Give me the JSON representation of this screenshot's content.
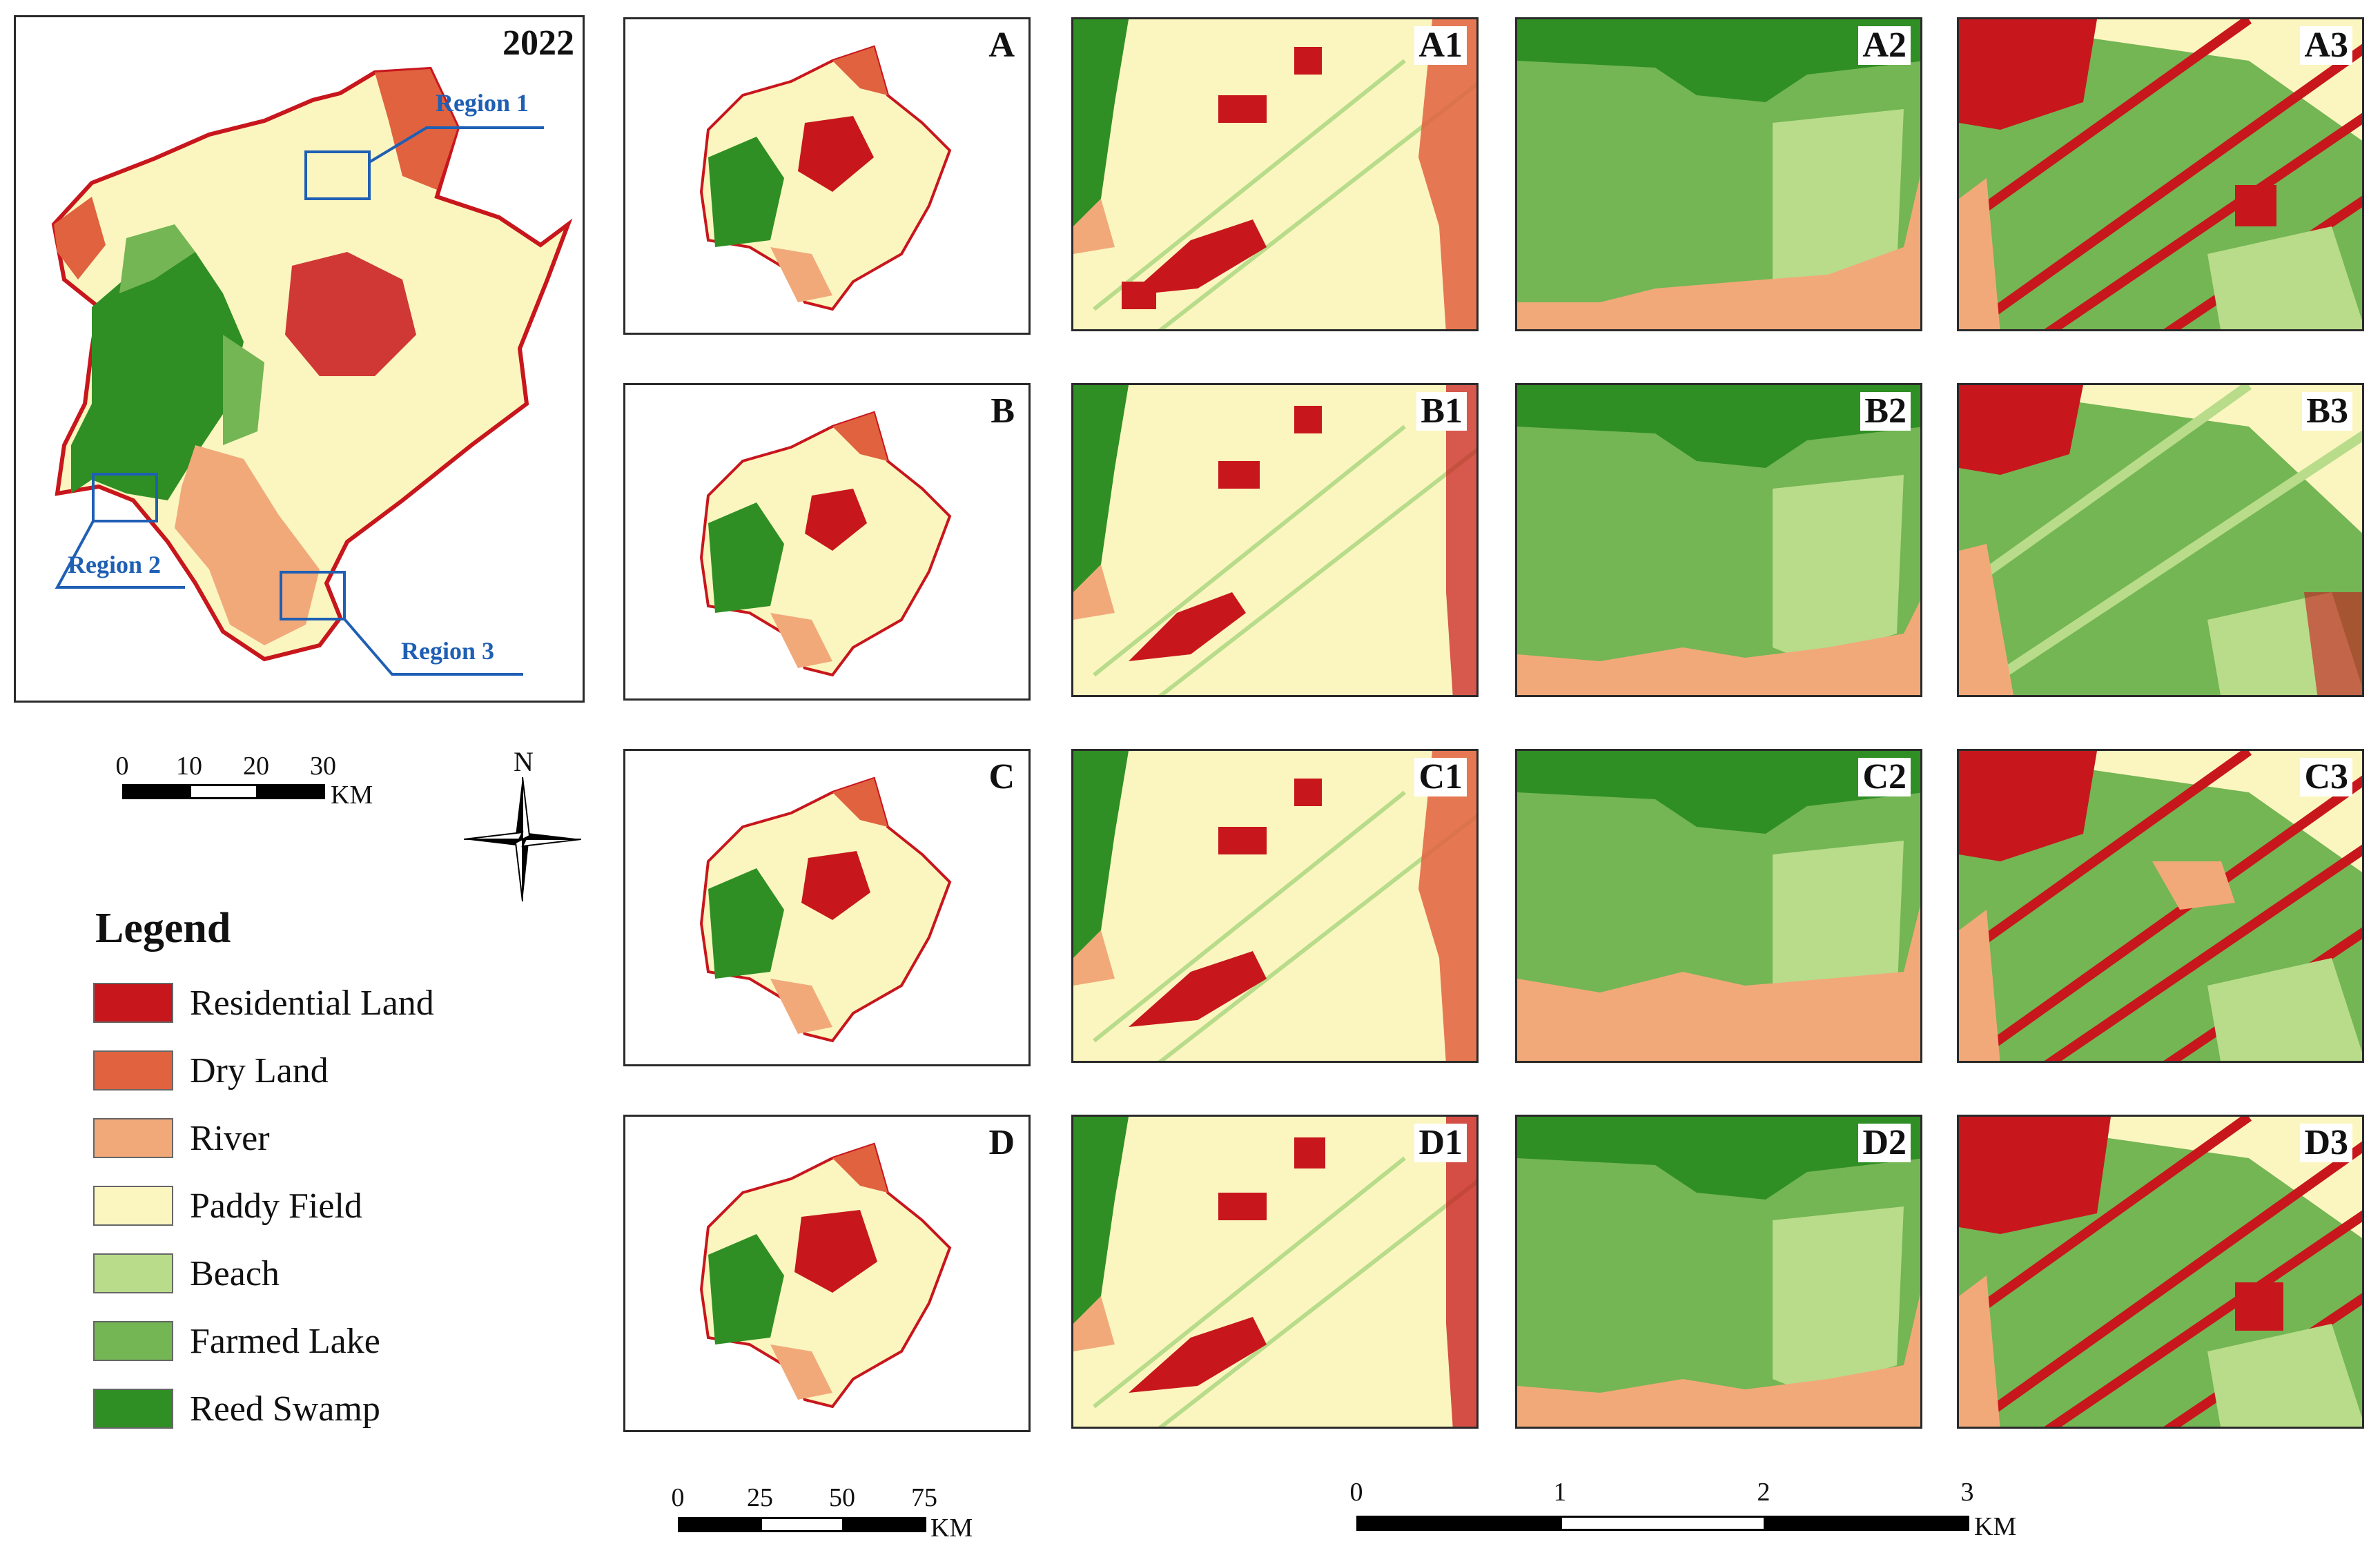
{
  "overview": {
    "year": "2022",
    "regions": [
      "Region 1",
      "Region 2",
      "Region 3"
    ]
  },
  "thumbnails": [
    "A",
    "B",
    "C",
    "D"
  ],
  "detail_rows": [
    [
      "A1",
      "A2",
      "A3"
    ],
    [
      "B1",
      "B2",
      "B3"
    ],
    [
      "C1",
      "C2",
      "C3"
    ],
    [
      "D1",
      "D2",
      "D3"
    ]
  ],
  "legend": {
    "title": "Legend",
    "items": [
      {
        "label": "Residential Land",
        "color": "#c8161d"
      },
      {
        "label": "Dry Land",
        "color": "#e0623f"
      },
      {
        "label": "River",
        "color": "#f2a97a"
      },
      {
        "label": "Paddy Field",
        "color": "#fbf6c0"
      },
      {
        "label": "Beach",
        "color": "#b8dc8a"
      },
      {
        "label": "Farmed Lake",
        "color": "#74b554"
      },
      {
        "label": "Reed Swamp",
        "color": "#2f8f24"
      }
    ]
  },
  "north_arrow": {
    "label": "N"
  },
  "scale_bars": {
    "overview": {
      "ticks": [
        "0",
        "10",
        "20",
        "30"
      ],
      "unit": "KM"
    },
    "thumbnails": {
      "ticks": [
        "0",
        "25",
        "50",
        "75"
      ],
      "unit": "KM"
    },
    "details": {
      "ticks": [
        "0",
        "1",
        "2",
        "3"
      ],
      "unit": "KM"
    }
  }
}
